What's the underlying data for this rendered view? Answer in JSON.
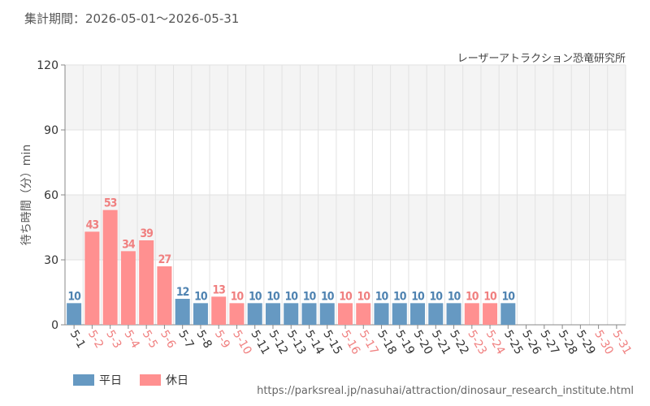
{
  "header": {
    "period": "集計期間：2026-05-01～2026-05-31",
    "subtitle": "レーザーアトラクション恐竜研究所",
    "source_url": "https://parksreal.jp/nasuhai/attraction/dinosaur_research_institute.html"
  },
  "legend": [
    {
      "label": "平日",
      "color": "#6699c2"
    },
    {
      "label": "休日",
      "color": "#ff9090"
    }
  ],
  "chart_data": {
    "type": "bar",
    "ylabel": "待ち時間（分）min",
    "ylim": [
      0,
      120
    ],
    "yticks": [
      0,
      30,
      60,
      90,
      120
    ],
    "grid": true,
    "legend_position": "bottom-left",
    "categories": [
      "5-1",
      "5-2",
      "5-3",
      "5-4",
      "5-5",
      "5-6",
      "5-7",
      "5-8",
      "5-9",
      "5-10",
      "5-11",
      "5-12",
      "5-13",
      "5-14",
      "5-15",
      "5-16",
      "5-17",
      "5-18",
      "5-19",
      "5-20",
      "5-21",
      "5-22",
      "5-23",
      "5-24",
      "5-25",
      "5-26",
      "5-27",
      "5-28",
      "5-29",
      "5-30",
      "5-31"
    ],
    "values": [
      10,
      43,
      53,
      34,
      39,
      27,
      12,
      10,
      13,
      10,
      10,
      10,
      10,
      10,
      10,
      10,
      10,
      10,
      10,
      10,
      10,
      10,
      10,
      10,
      10,
      null,
      null,
      null,
      null,
      null,
      null
    ],
    "holiday": [
      false,
      true,
      true,
      true,
      true,
      true,
      false,
      false,
      true,
      true,
      false,
      false,
      false,
      false,
      false,
      true,
      true,
      false,
      false,
      false,
      false,
      false,
      true,
      true,
      false,
      false,
      false,
      false,
      false,
      true,
      true
    ],
    "colors": {
      "weekday": "#6699c2",
      "holiday": "#ff9090",
      "weekday_label": "#4f83b1",
      "holiday_label": "#f08080",
      "tick_weekday": "#333333",
      "tick_holiday": "#f08080",
      "band": "#f4f4f4",
      "grid": "#e2e2e2"
    }
  }
}
